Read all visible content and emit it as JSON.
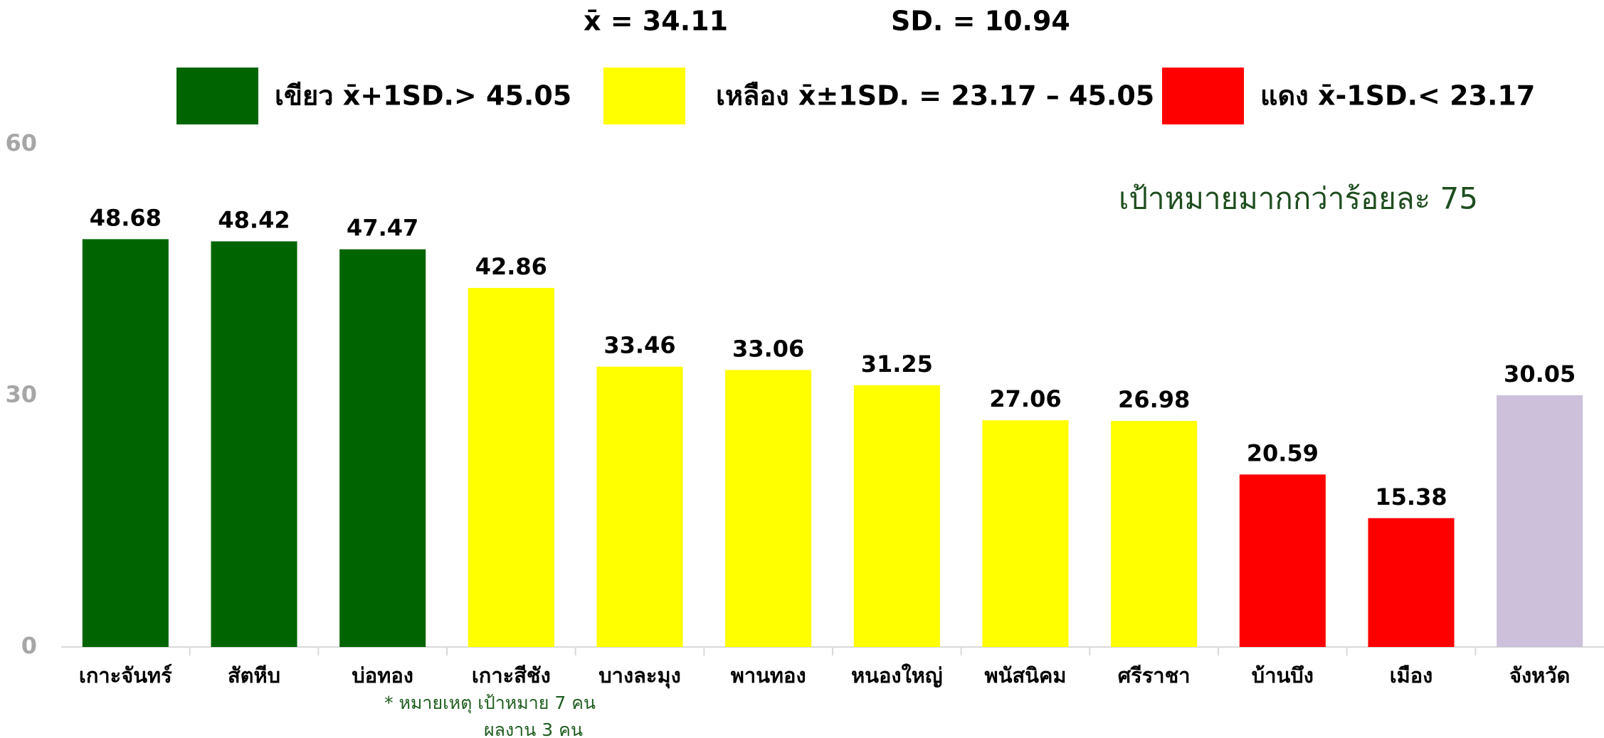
{
  "chart_data": {
    "type": "bar",
    "stats": [
      "x̄ = 34.11",
      "SD. = 10.94"
    ],
    "legend": [
      {
        "color": "#006400",
        "label": "เขียว x̄+1SD.> 45.05"
      },
      {
        "color": "#ffff00",
        "label": "เหลือง x̄±1SD. = 23.17 – 45.05"
      },
      {
        "color": "#ff0000",
        "label": "แดง x̄-1SD.< 23.17"
      }
    ],
    "annotation": "เป้าหมายมากกว่าร้อยละ 75",
    "notes": [
      "* หมายเหตุ เป้าหมาย 7 คน",
      "ผลงาน 3 คน"
    ],
    "categories": [
      "เกาะจันทร์",
      "สัตหีบ",
      "บ่อทอง",
      "เกาะสีชัง",
      "บางละมุง",
      "พานทอง",
      "หนองใหญ่",
      "พนัสนิคม",
      "ศรีราชา",
      "บ้านบึง",
      "เมือง",
      "จังหวัด"
    ],
    "values": [
      48.68,
      48.42,
      47.47,
      42.86,
      33.46,
      33.06,
      31.25,
      27.06,
      26.98,
      20.59,
      15.38,
      30.05
    ],
    "colors": [
      "#006400",
      "#006400",
      "#006400",
      "#ffff00",
      "#ffff00",
      "#ffff00",
      "#ffff00",
      "#ffff00",
      "#ffff00",
      "#ff0000",
      "#ff0000",
      "#ccc0da"
    ],
    "ylim": [
      0,
      60
    ],
    "yticks": [
      0,
      30,
      60
    ],
    "grid": false
  }
}
